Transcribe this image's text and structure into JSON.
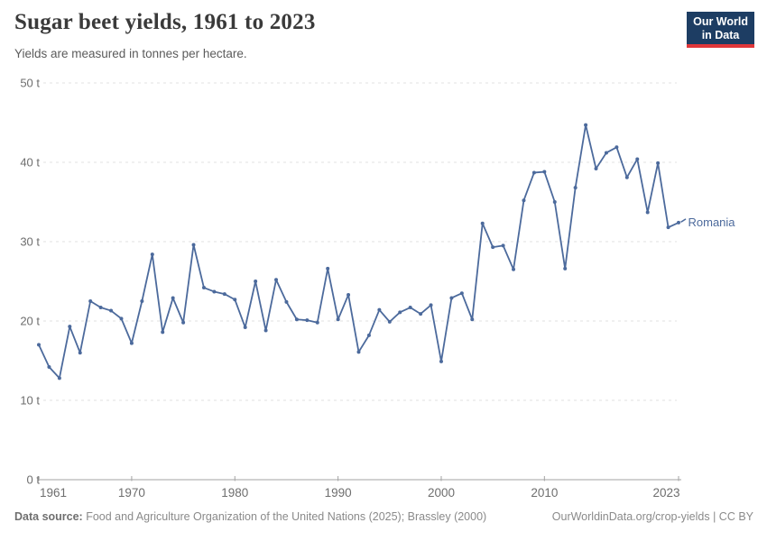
{
  "header": {
    "title": "Sugar beet yields, 1961 to 2023",
    "subtitle": "Yields are measured in tonnes per hectare.",
    "logo": {
      "line1": "Our World",
      "line2": "in Data"
    }
  },
  "chart_data": {
    "type": "line",
    "title": "Sugar beet yields, 1961 to 2023",
    "ylabel": "tonnes per hectare",
    "unit": "t",
    "x_range": [
      1961,
      2023
    ],
    "ylim": [
      0,
      50
    ],
    "y_ticks": [
      0,
      10,
      20,
      30,
      40,
      50
    ],
    "y_tick_labels": [
      "0 t",
      "10 t",
      "20 t",
      "30 t",
      "40 t",
      "50 t"
    ],
    "x_ticks": [
      1961,
      1970,
      1980,
      1990,
      2000,
      2010,
      2023
    ],
    "grid": true,
    "legend_position": "end-of-line",
    "series": [
      {
        "name": "Romania",
        "color": "#4C6A9C",
        "x": [
          1961,
          1962,
          1963,
          1964,
          1965,
          1966,
          1967,
          1968,
          1969,
          1970,
          1971,
          1972,
          1973,
          1974,
          1975,
          1976,
          1977,
          1978,
          1979,
          1980,
          1981,
          1982,
          1983,
          1984,
          1985,
          1986,
          1987,
          1988,
          1989,
          1990,
          1991,
          1992,
          1993,
          1994,
          1995,
          1996,
          1997,
          1998,
          1999,
          2000,
          2001,
          2002,
          2003,
          2004,
          2005,
          2006,
          2007,
          2008,
          2009,
          2010,
          2011,
          2012,
          2013,
          2014,
          2015,
          2016,
          2017,
          2018,
          2019,
          2020,
          2021,
          2022,
          2023
        ],
        "values": [
          17.0,
          14.2,
          12.8,
          19.3,
          16.0,
          22.5,
          21.7,
          21.3,
          20.3,
          17.2,
          22.5,
          28.4,
          18.6,
          22.9,
          19.8,
          29.6,
          24.2,
          23.7,
          23.4,
          22.7,
          19.2,
          25.0,
          18.8,
          25.2,
          22.4,
          20.2,
          20.1,
          19.8,
          26.6,
          20.2,
          23.3,
          16.1,
          18.2,
          21.4,
          19.9,
          21.1,
          21.7,
          20.9,
          22.0,
          14.9,
          22.9,
          23.5,
          20.2,
          32.3,
          29.3,
          29.5,
          26.5,
          35.2,
          38.7,
          38.8,
          35.0,
          26.6,
          36.8,
          44.7,
          39.2,
          41.2,
          41.9,
          38.1,
          40.4,
          33.7,
          39.9,
          31.8,
          32.4
        ]
      }
    ]
  },
  "footer": {
    "source_label": "Data source:",
    "source_text": " Food and Agriculture Organization of the United Nations (2025); Brassley (2000)",
    "license_text": "OurWorldinData.org/crop-yields | CC BY"
  },
  "colors": {
    "line": "#4C6A9C",
    "gridline": "#e0e0e0",
    "axis": "#a3a3a3",
    "tick_text": "#6e6e6e",
    "title_text": "#3a3a3a",
    "subtitle_text": "#5b5b5b",
    "logo_bg": "#1d3d63",
    "logo_accent": "#e0373a"
  }
}
